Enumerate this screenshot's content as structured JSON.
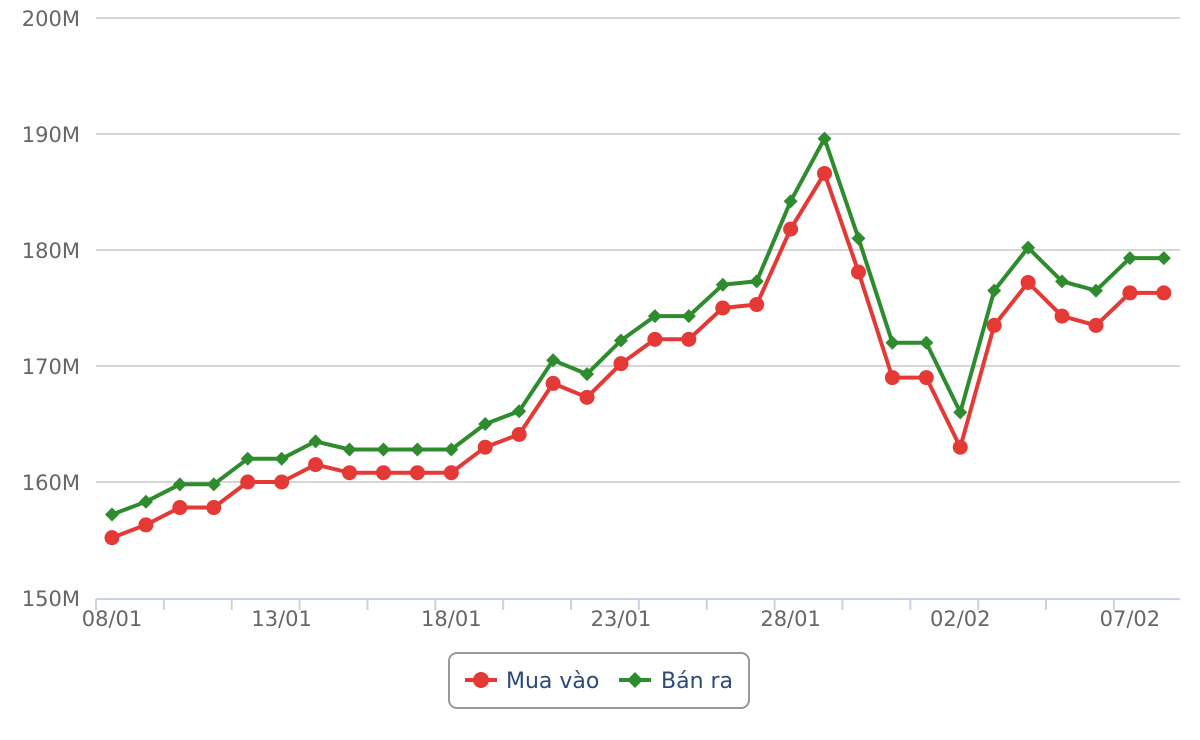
{
  "chart_data": {
    "type": "line",
    "x": [
      "08/01",
      "09/01",
      "10/01",
      "11/01",
      "12/01",
      "13/01",
      "14/01",
      "15/01",
      "16/01",
      "17/01",
      "18/01",
      "19/01",
      "20/01",
      "21/01",
      "22/01",
      "23/01",
      "24/01",
      "25/01",
      "26/01",
      "27/01",
      "28/01",
      "29/01",
      "30/01",
      "31/01",
      "01/02",
      "02/02",
      "03/02",
      "04/02",
      "05/02",
      "06/02",
      "07/02",
      "08/02"
    ],
    "x_tick_labels": [
      "08/01",
      "13/01",
      "18/01",
      "23/01",
      "28/01",
      "02/02",
      "07/02"
    ],
    "y_tick_labels": [
      "150M",
      "160M",
      "170M",
      "180M",
      "190M",
      "200M"
    ],
    "ylim": [
      150,
      200
    ],
    "y_ticks": [
      150,
      160,
      170,
      180,
      190,
      200
    ],
    "grid": true,
    "legend_position": "bottom-center",
    "series": [
      {
        "name": "Mua vào",
        "color": "#e53935",
        "marker": "circle",
        "values": [
          155.2,
          156.3,
          157.8,
          157.8,
          160.0,
          160.0,
          161.5,
          160.8,
          160.8,
          160.8,
          160.8,
          163.0,
          164.1,
          168.5,
          167.3,
          170.2,
          172.3,
          172.3,
          175.0,
          175.3,
          181.8,
          186.6,
          178.1,
          169.0,
          169.0,
          163.0,
          173.5,
          177.2,
          174.3,
          173.5,
          176.3,
          176.3
        ]
      },
      {
        "name": "Bán ra",
        "color": "#2e8b2e",
        "marker": "diamond",
        "values": [
          157.2,
          158.3,
          159.8,
          159.8,
          162.0,
          162.0,
          163.5,
          162.8,
          162.8,
          162.8,
          162.8,
          165.0,
          166.1,
          170.5,
          169.3,
          172.2,
          174.3,
          174.3,
          177.0,
          177.3,
          184.2,
          189.6,
          181.0,
          172.0,
          172.0,
          166.0,
          176.5,
          180.2,
          177.3,
          176.5,
          179.3,
          179.3
        ]
      }
    ]
  }
}
